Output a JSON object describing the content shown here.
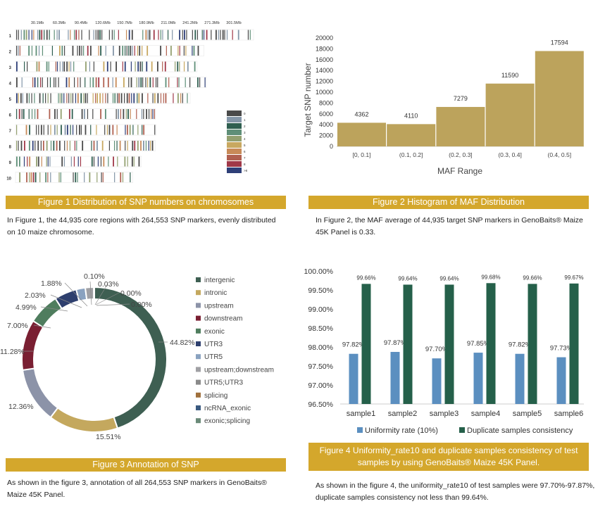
{
  "colors": {
    "banner": "#d4a72c",
    "bar_gold": "#bca35c",
    "bar_blue": "#5b8fc0",
    "bar_green": "#25604a"
  },
  "figure1": {
    "banner": "Figure 1  Distribution of SNP numbers on  chromosomes",
    "caption": "In Figure 1, the 44,935 core regions with 264,553 SNP markers, evenly distributed on 10 maize chromosome.",
    "chart_data": {
      "type": "heatmap",
      "title": "",
      "x_ticks": [
        "30.1Mb",
        "60.3Mb",
        "90.4Mb",
        "120.6Mb",
        "150.7Mb",
        "180.9Mb",
        "211.0Mb",
        "241.2Mb",
        "271.3Mb",
        "301.5Mb"
      ],
      "chromosomes": [
        "1",
        "2",
        "3",
        "4",
        "5",
        "6",
        "7",
        "8",
        "9",
        "10"
      ],
      "chromosome_length_mb": [
        308,
        244,
        235,
        247,
        226,
        181,
        182,
        181,
        163,
        152
      ],
      "legend": [
        "0",
        "1",
        "2",
        "3",
        "4",
        "5",
        "6",
        "7",
        "8",
        ">8"
      ],
      "legend_colors": [
        "#4a4a4a",
        "#8496a8",
        "#2f5f50",
        "#5f8f78",
        "#93a070",
        "#c8a860",
        "#c88a58",
        "#b06050",
        "#a03848",
        "#2e3f78"
      ]
    }
  },
  "figure2": {
    "banner": "Figure 2  Histogram of MAF Distribution",
    "caption": "In Figure 2, the MAF average of 44,935 target SNP markers in GenoBaits® Maize 45K Panel is 0.33.",
    "chart_data": {
      "type": "bar",
      "categories": [
        "[0, 0.1]",
        "(0.1, 0.2]",
        "(0.2, 0.3]",
        "(0.3, 0.4]",
        "(0.4, 0.5]"
      ],
      "values": [
        4362,
        4110,
        7279,
        11590,
        17594
      ],
      "data_labels": [
        "4362",
        "4110",
        "7279",
        "11590",
        "17594"
      ],
      "xlabel": "MAF Range",
      "ylabel": "Target SNP number",
      "ylim": [
        0,
        20000
      ],
      "y_ticks": [
        "0",
        "2000",
        "4000",
        "6000",
        "8000",
        "10000",
        "12000",
        "14000",
        "16000",
        "18000",
        "20000"
      ]
    }
  },
  "figure3": {
    "banner": "Figure 3  Annotation of SNP",
    "caption": "As shown in the figure 3, annotation of all 264,553 SNP markers in GenoBaits® Maize 45K Panel.",
    "chart_data": {
      "type": "pie",
      "style": "donut",
      "labels": [
        "intergenic",
        "intronic",
        "upstream",
        "downstream",
        "exonic",
        "UTR3",
        "UTR5",
        "upstream;downstream",
        "UTR5;UTR3",
        "splicing",
        "ncRNA_exonic",
        "exonic;splicing"
      ],
      "values": [
        44.82,
        15.51,
        12.36,
        11.28,
        7.0,
        4.99,
        2.03,
        1.88,
        0.1,
        0.03,
        0.0,
        0.0
      ],
      "value_labels": [
        "44.82%",
        "15.51%",
        "12.36%",
        "11.28%",
        "7.00%",
        "4.99%",
        "2.03%",
        "1.88%",
        "0.10%",
        "0.03%",
        "0.00%",
        "0.00%"
      ],
      "colors": [
        "#3e5f52",
        "#c4a85e",
        "#8c93a8",
        "#7a1f32",
        "#4f7d5e",
        "#2e3f6e",
        "#8aa2c0",
        "#a0a0a4",
        "#8a8a8a",
        "#a0703c",
        "#3a5a80",
        "#6a8a78"
      ]
    }
  },
  "figure4": {
    "banner": "Figure 4  Uniformity_rate10 and duplicate samples consistency of test samples by using GenoBaits® Maize 45K Panel.",
    "caption": "As shown in the figure 4, the uniformity_rate10 of test samples were 97.70%-97.87%, duplicate samples consistency not less than 99.64%.",
    "chart_data": {
      "type": "bar",
      "categories": [
        "sample1",
        "sample2",
        "sample3",
        "sample4",
        "sample5",
        "sample6"
      ],
      "series": [
        {
          "name": "Uniformity rate (10%)",
          "values": [
            97.82,
            97.87,
            97.7,
            97.85,
            97.82,
            97.73
          ],
          "labels": [
            "97.82%",
            "97.87%",
            "97.70%",
            "97.85%",
            "97.82%",
            "97.73%"
          ]
        },
        {
          "name": "Duplicate samples consistency",
          "values": [
            99.66,
            99.64,
            99.64,
            99.68,
            99.66,
            99.67
          ],
          "labels": [
            "99.66%",
            "99.64%",
            "99.64%",
            "99.68%",
            "99.66%",
            "99.67%"
          ]
        }
      ],
      "ylim": [
        96.5,
        100.0
      ],
      "y_ticks": [
        "96.50%",
        "97.00%",
        "97.50%",
        "98.00%",
        "98.50%",
        "99.00%",
        "99.50%",
        "100.00%"
      ],
      "legend_position": "bottom"
    }
  }
}
